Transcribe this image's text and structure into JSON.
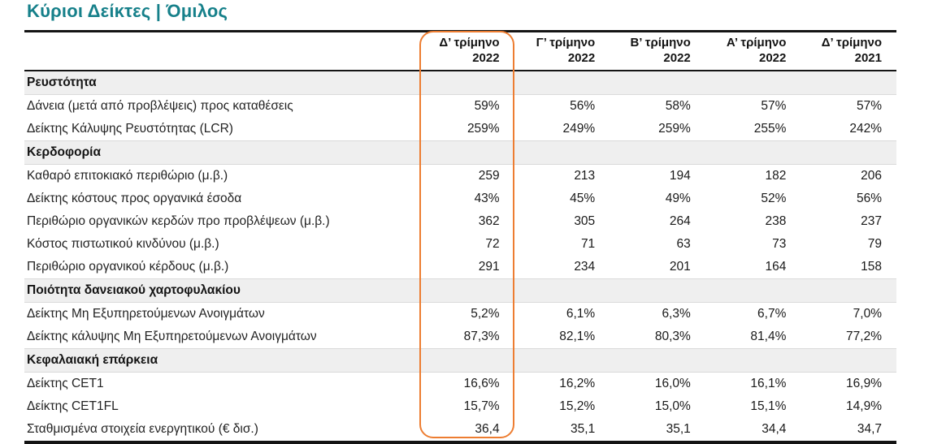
{
  "title": "Κύριοι Δείκτες | Όμιλος",
  "colors": {
    "title_teal": "#16808A",
    "highlight_orange": "#ED7D31",
    "section_band_gray": "#EFEFEF",
    "rule_black": "#141414"
  },
  "table": {
    "column_headers": [
      {
        "line1": "Δ’ τρίμηνο",
        "line2": "2022"
      },
      {
        "line1": "Γ’ τρίμηνο",
        "line2": "2022"
      },
      {
        "line1": "Β’ τρίμηνο",
        "line2": "2022"
      },
      {
        "line1": "Α’ τρίμηνο",
        "line2": "2022"
      },
      {
        "line1": "Δ’ τρίμηνο",
        "line2": "2021"
      }
    ],
    "highlighted_column": "Δ’ τρίμηνο 2022",
    "sections": [
      {
        "header": "Ρευστότητα",
        "rows": [
          {
            "label": "Δάνεια (μετά από προβλέψεις) προς καταθέσεις",
            "values": [
              "59%",
              "56%",
              "58%",
              "57%",
              "57%"
            ]
          },
          {
            "label": "Δείκτης Κάλυψης Ρευστότητας (LCR)",
            "values": [
              "259%",
              "249%",
              "259%",
              "255%",
              "242%"
            ]
          }
        ]
      },
      {
        "header": "Κερδοφορία",
        "rows": [
          {
            "label": "Καθαρό επιτοκιακό περιθώριο (μ.β.)",
            "values": [
              "259",
              "213",
              "194",
              "182",
              "206"
            ]
          },
          {
            "label": "Δείκτης κόστους προς οργανικά έσοδα",
            "values": [
              "43%",
              "45%",
              "49%",
              "52%",
              "56%"
            ]
          },
          {
            "label": "Περιθώριο οργανικών κερδών προ προβλέψεων (μ.β.)",
            "values": [
              "362",
              "305",
              "264",
              "238",
              "237"
            ]
          },
          {
            "label": "Κόστος πιστωτικού κινδύνου (μ.β.)",
            "values": [
              "72",
              "71",
              "63",
              "73",
              "79"
            ]
          },
          {
            "label": "Περιθώριο οργανικού κέρδους (μ.β.)",
            "values": [
              "291",
              "234",
              "201",
              "164",
              "158"
            ]
          }
        ]
      },
      {
        "header": "Ποιότητα δανειακού χαρτοφυλακίου",
        "rows": [
          {
            "label": "Δείκτης Μη Εξυπηρετούμενων Ανοιγμάτων",
            "values": [
              "5,2%",
              "6,1%",
              "6,3%",
              "6,7%",
              "7,0%"
            ]
          },
          {
            "label": "Δείκτης κάλυψης Μη Εξυπηρετούμενων Ανοιγμάτων",
            "values": [
              "87,3%",
              "82,1%",
              "80,3%",
              "81,4%",
              "77,2%"
            ]
          }
        ]
      },
      {
        "header": "Κεφαλαιακή επάρκεια",
        "rows": [
          {
            "label": "Δείκτης CET1",
            "values": [
              "16,6%",
              "16,2%",
              "16,0%",
              "16,1%",
              "16,9%"
            ]
          },
          {
            "label": "Δείκτης CET1FL",
            "values": [
              "15,7%",
              "15,2%",
              "15,0%",
              "15,1%",
              "14,9%"
            ]
          },
          {
            "label": "Σταθμισμένα στοιχεία ενεργητικού (€ δισ.)",
            "values": [
              "36,4",
              "35,1",
              "35,1",
              "34,4",
              "34,7"
            ]
          }
        ]
      }
    ]
  }
}
